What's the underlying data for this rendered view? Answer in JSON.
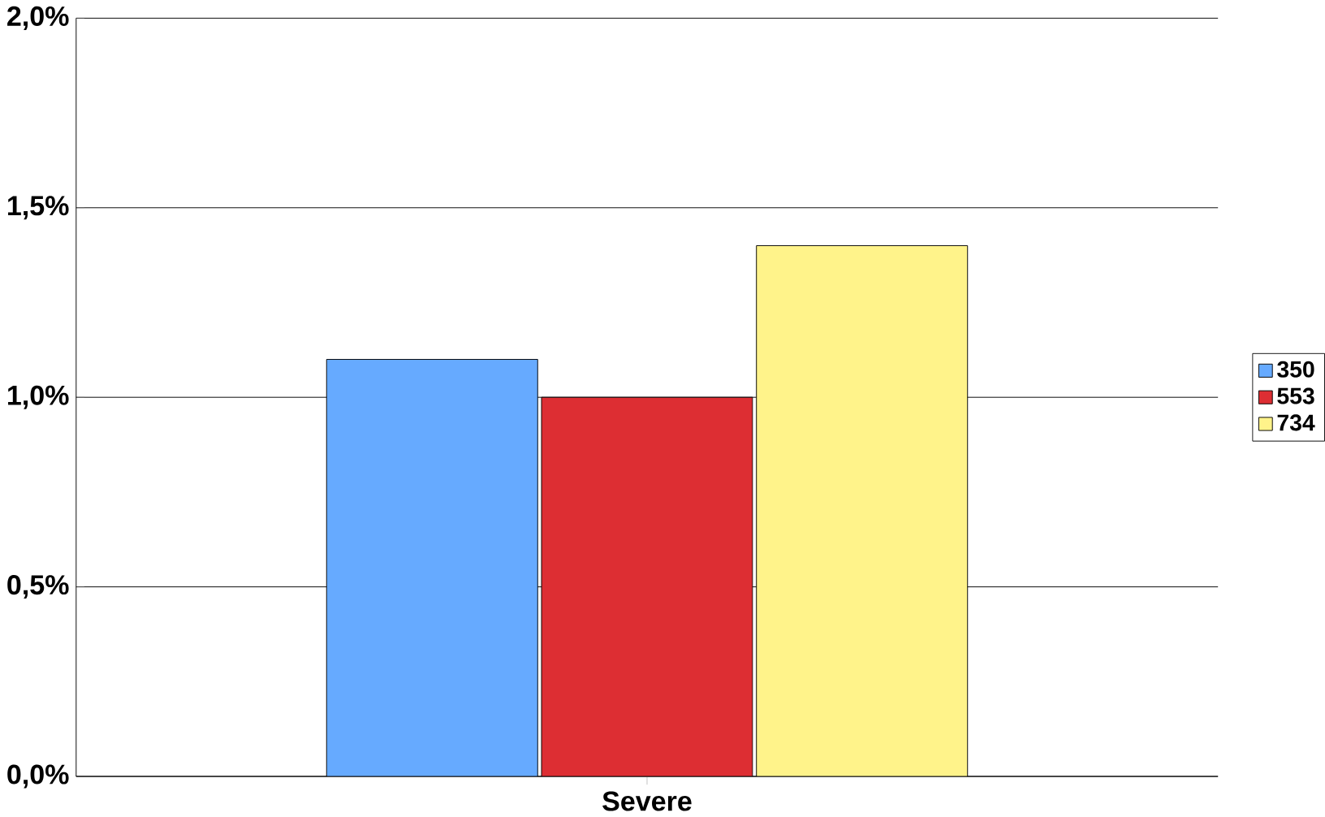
{
  "chart_data": {
    "type": "bar",
    "categories": [
      "Severe"
    ],
    "series": [
      {
        "name": "350",
        "color": "#66aaff",
        "values": [
          1.1
        ]
      },
      {
        "name": "553",
        "color": "#dd2e33",
        "values": [
          1.0
        ]
      },
      {
        "name": "734",
        "color": "#fff38a",
        "values": [
          1.4
        ]
      }
    ],
    "ylim": [
      0,
      2.0
    ],
    "yticks": [
      {
        "value": 0,
        "label": "0,0%"
      },
      {
        "value": 0.5,
        "label": "0,5%"
      },
      {
        "value": 1.0,
        "label": "1,0%"
      },
      {
        "value": 1.5,
        "label": "1,5%"
      },
      {
        "value": 2.0,
        "label": "2,0%"
      }
    ],
    "grid": "y",
    "legend": "right"
  }
}
